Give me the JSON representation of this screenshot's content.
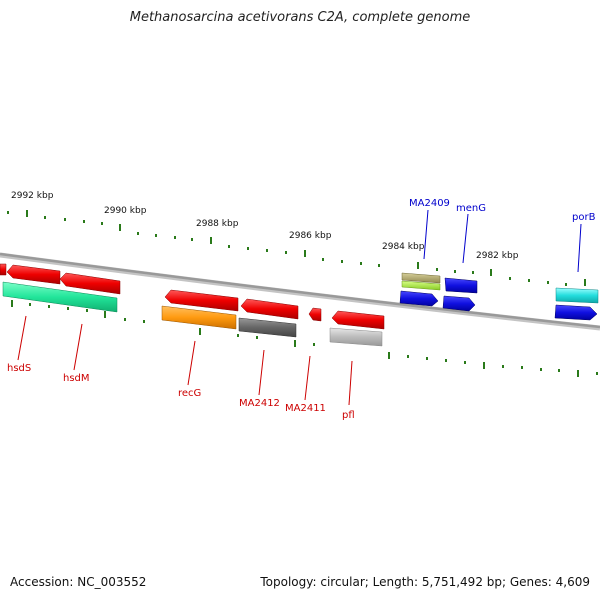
{
  "title": "Methanosarcina acetivorans C2A, complete genome",
  "footer": {
    "accession": "Accession: NC_003552",
    "topology": "Topology: circular; Length: 5,751,492 bp; Genes: 4,609"
  },
  "ticks": [
    {
      "label": "2992 kbp"
    },
    {
      "label": "2990 kbp"
    },
    {
      "label": "2988 kbp"
    },
    {
      "label": "2986 kbp"
    },
    {
      "label": "2984 kbp"
    },
    {
      "label": "2982 kbp"
    }
  ],
  "genes": [
    {
      "name": "hsdS",
      "color": "#e00000",
      "strand": "reverse"
    },
    {
      "name": "hsdM",
      "color": "#e00000",
      "strand": "reverse"
    },
    {
      "name": "recG",
      "color": "#e00000",
      "strand": "reverse"
    },
    {
      "name": "MA2412",
      "color": "#e00000",
      "strand": "reverse"
    },
    {
      "name": "MA2411",
      "color": "#e00000",
      "strand": "reverse"
    },
    {
      "name": "pfl",
      "color": "#e00000",
      "strand": "reverse"
    },
    {
      "name": "MA2409",
      "color": "#1010e0",
      "strand": "forward"
    },
    {
      "name": "menG",
      "color": "#1010e0",
      "strand": "forward"
    },
    {
      "name": "porB",
      "color": "#1010e0",
      "strand": "forward"
    }
  ],
  "colors": {
    "reverse_label": "#cc0000",
    "forward_label": "#0000cc",
    "backbone": "#888888",
    "tick": "#2a7a1a",
    "cog_green": "#22e59a",
    "cog_orange": "#ff9a10",
    "cog_darkgray": "#666666",
    "cog_lightgray": "#bbbbbb",
    "cog_olive": "#b3a86a",
    "cog_lime": "#aaee44",
    "cog_cyan": "#22dddd"
  }
}
